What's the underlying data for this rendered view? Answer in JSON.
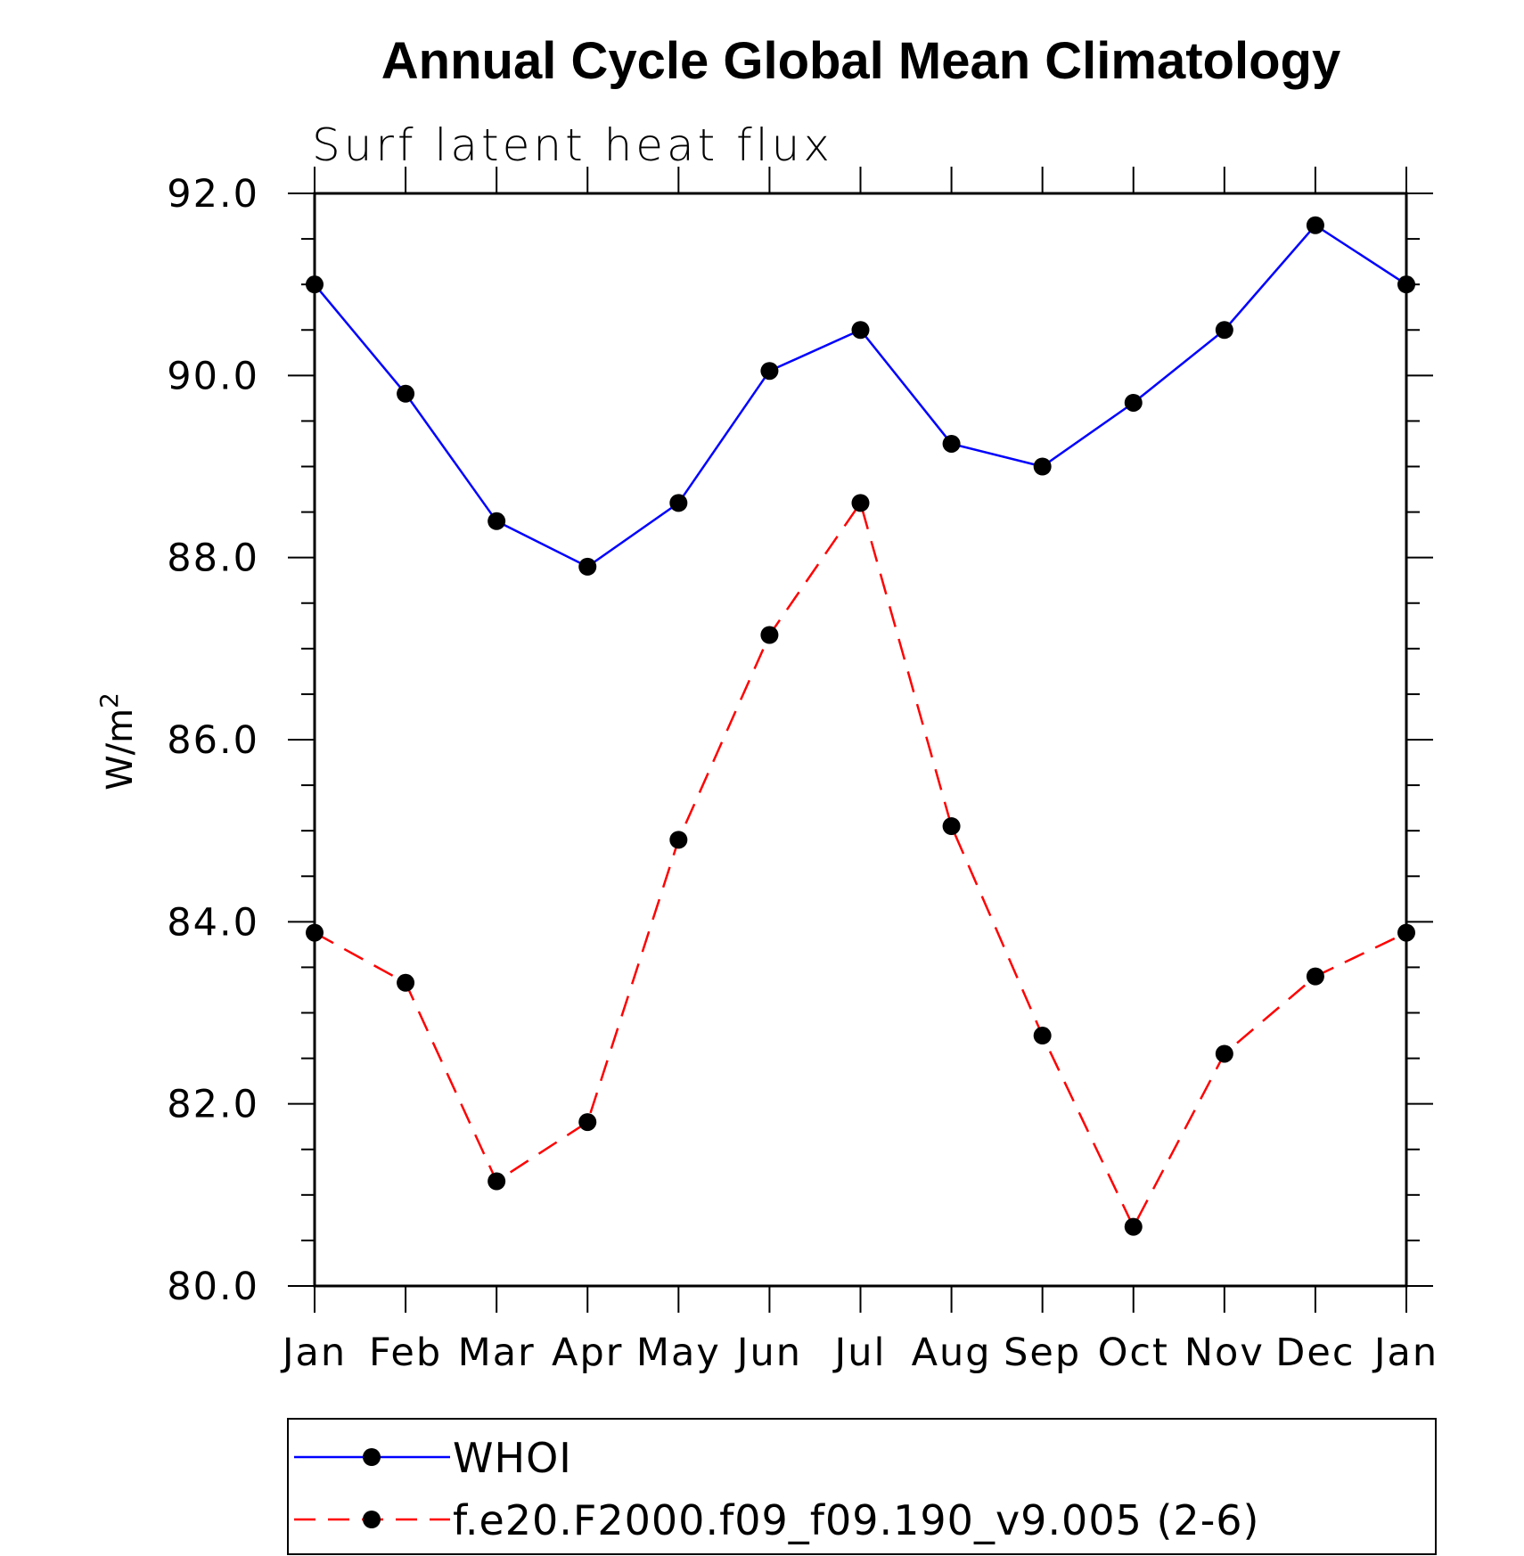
{
  "chart_data": {
    "type": "line",
    "title": "Annual Cycle Global Mean Climatology",
    "subtitle": "Surf latent heat flux",
    "ylabel": "W/m",
    "ylabel_superscript": "2",
    "xlabel": "",
    "categories": [
      "Jan",
      "Feb",
      "Mar",
      "Apr",
      "May",
      "Jun",
      "Jul",
      "Aug",
      "Sep",
      "Oct",
      "Nov",
      "Dec",
      "Jan"
    ],
    "ylim": [
      80.0,
      92.0
    ],
    "yticks": [
      "80.0",
      "82.0",
      "84.0",
      "86.0",
      "88.0",
      "90.0",
      "92.0"
    ],
    "grid": false,
    "legend_position": "bottom",
    "series": [
      {
        "name": "WHOI",
        "color": "#0000ff",
        "line_style": "solid",
        "marker": "filled-circle",
        "values": [
          91.0,
          89.8,
          88.4,
          87.9,
          88.6,
          90.05,
          90.5,
          89.25,
          89.0,
          89.7,
          90.5,
          91.65,
          91.0
        ]
      },
      {
        "name": "f.e20.F2000.f09_f09.190_v9.005 (2-6)",
        "color": "#ff0000",
        "line_style": "dashed",
        "marker": "filled-circle",
        "values": [
          83.88,
          83.33,
          81.15,
          81.8,
          84.9,
          87.15,
          88.6,
          85.05,
          82.75,
          80.65,
          82.55,
          83.4,
          83.88
        ]
      }
    ]
  }
}
